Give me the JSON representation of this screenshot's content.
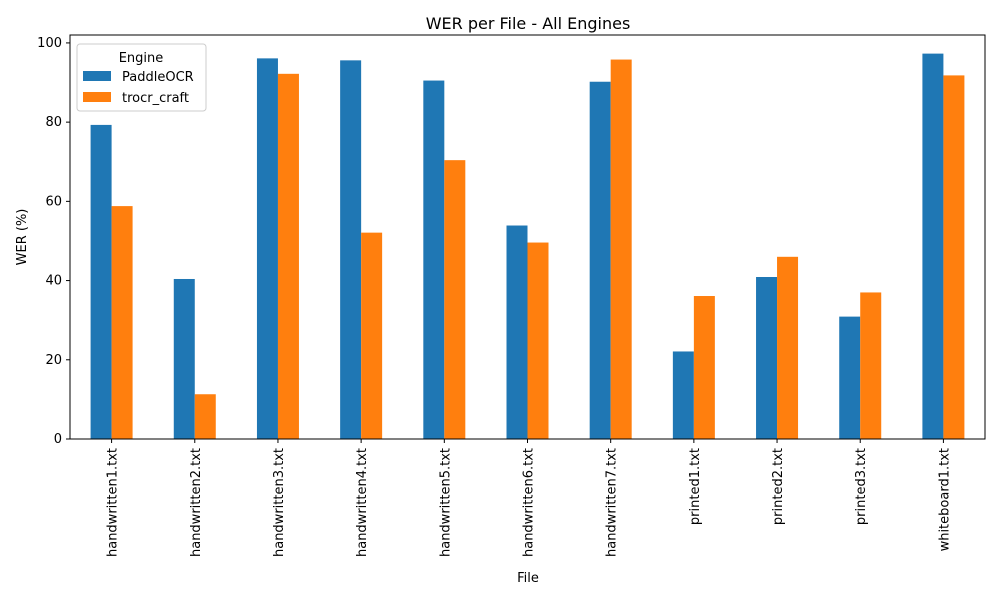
{
  "chart_data": {
    "type": "bar",
    "title": "WER per File - All Engines",
    "xlabel": "File",
    "ylabel": "WER (%)",
    "ylim": [
      0,
      102
    ],
    "yticks": [
      0,
      20,
      40,
      60,
      80,
      100
    ],
    "grid": false,
    "legend": {
      "title": "Engine",
      "placement": "top-left"
    },
    "categories": [
      "handwritten1.txt",
      "handwritten2.txt",
      "handwritten3.txt",
      "handwritten4.txt",
      "handwritten5.txt",
      "handwritten6.txt",
      "handwritten7.txt",
      "printed1.txt",
      "printed2.txt",
      "printed3.txt",
      "whiteboard1.txt"
    ],
    "series": [
      {
        "name": "PaddleOCR",
        "color": "#1f77b4",
        "values": [
          79.3,
          40.4,
          96.1,
          95.6,
          90.5,
          53.9,
          90.2,
          22.1,
          40.9,
          30.9,
          97.3
        ]
      },
      {
        "name": "trocr_craft",
        "color": "#ff7f0e",
        "values": [
          58.8,
          11.3,
          92.2,
          52.1,
          70.4,
          49.6,
          95.8,
          36.1,
          46.0,
          37.0,
          91.8
        ]
      }
    ]
  }
}
